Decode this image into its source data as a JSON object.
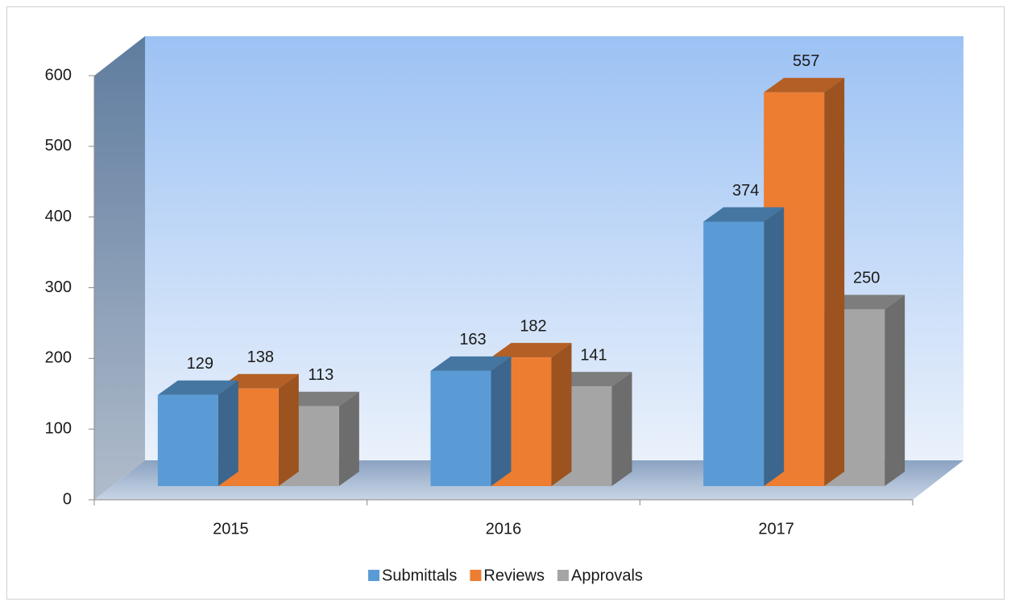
{
  "chart_data": {
    "type": "bar",
    "categories": [
      "2015",
      "2016",
      "2017"
    ],
    "series": [
      {
        "name": "Submittals",
        "color": "#5b9bd5",
        "values": [
          129,
          163,
          374
        ]
      },
      {
        "name": "Reviews",
        "color": "#ed7d31",
        "values": [
          138,
          182,
          557
        ]
      },
      {
        "name": "Approvals",
        "color": "#a5a5a5",
        "values": [
          113,
          141,
          250
        ]
      }
    ],
    "ylim": [
      0,
      600
    ],
    "yticks": [
      0,
      100,
      200,
      300,
      400,
      500,
      600
    ],
    "legend": "bottom"
  }
}
